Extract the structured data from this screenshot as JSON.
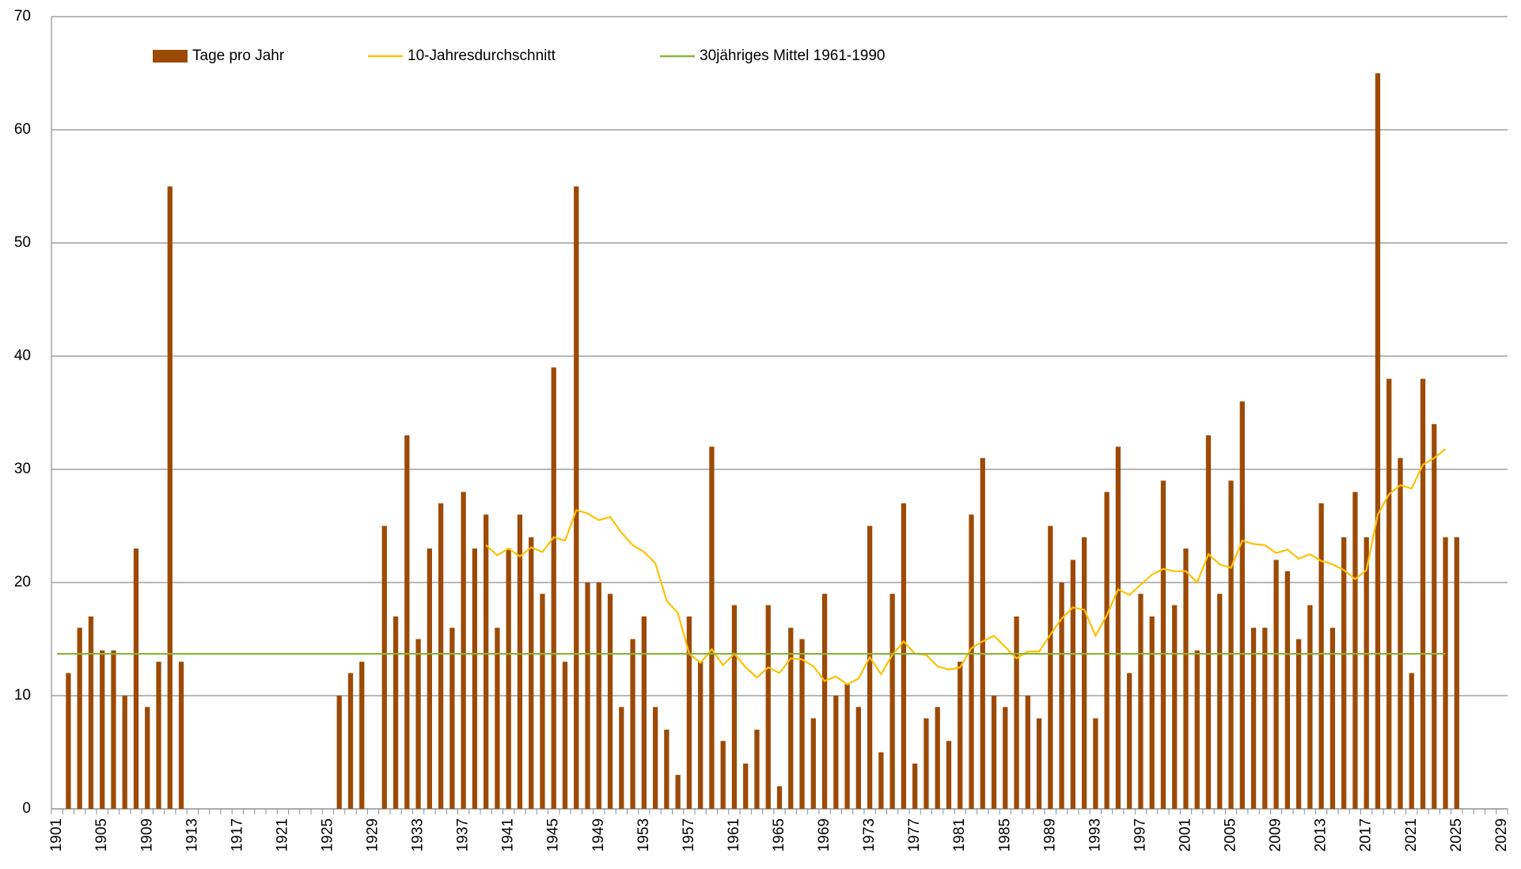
{
  "chart_data": {
    "type": "bar",
    "categories": [
      "1901",
      null,
      null,
      null,
      "1905",
      null,
      null,
      null,
      "1909",
      null,
      null,
      null,
      "1913",
      null,
      null,
      null,
      "1917",
      null,
      null,
      null,
      "1921",
      null,
      null,
      null,
      "1925",
      null,
      null,
      null,
      "1929",
      null,
      null,
      null,
      "1933",
      null,
      null,
      null,
      "1937",
      null,
      null,
      null,
      "1941",
      null,
      null,
      null,
      "1945",
      null,
      null,
      null,
      "1949",
      null,
      null,
      null,
      "1953",
      null,
      null,
      null,
      "1957",
      null,
      null,
      null,
      "1961",
      null,
      null,
      null,
      "1965",
      null,
      null,
      null,
      "1969",
      null,
      null,
      null,
      "1973",
      null,
      null,
      null,
      "1977",
      null,
      null,
      null,
      "1981",
      null,
      null,
      null,
      "1985",
      null,
      null,
      null,
      "1989",
      null,
      null,
      null,
      "1993",
      null,
      null,
      null,
      "1997",
      null,
      null,
      null,
      "2001",
      null,
      null,
      null,
      "2005",
      null,
      null,
      null,
      "2009",
      null,
      null,
      null,
      "2013",
      null,
      null,
      null,
      "2017",
      null,
      null,
      null,
      "2021",
      null,
      null,
      null,
      "2025",
      null,
      null,
      null,
      "2029"
    ],
    "series": [
      {
        "name": "Tage pro Jahr",
        "type": "bar",
        "color": "#9c4a06",
        "values": [
          null,
          12,
          16,
          17,
          14,
          14,
          10,
          23,
          9,
          13,
          55,
          13,
          null,
          null,
          null,
          null,
          null,
          null,
          null,
          null,
          null,
          null,
          null,
          null,
          null,
          10,
          12,
          13,
          null,
          25,
          17,
          33,
          15,
          23,
          27,
          16,
          28,
          23,
          26,
          16,
          23,
          26,
          24,
          19,
          39,
          13,
          55,
          20,
          20,
          19,
          9,
          15,
          17,
          9,
          7,
          3,
          17,
          13,
          32,
          6,
          18,
          4,
          7,
          18,
          2,
          16,
          15,
          8,
          19,
          10,
          11,
          9,
          25,
          5,
          19,
          27,
          4,
          8,
          9,
          6,
          13,
          26,
          31,
          10,
          9,
          17,
          10,
          8,
          25,
          20,
          22,
          24,
          8,
          28,
          32,
          12,
          19,
          17,
          29,
          18,
          23,
          14,
          33,
          19,
          29,
          36,
          16,
          16,
          22,
          21,
          15,
          18,
          27,
          16,
          24,
          28,
          24,
          65,
          38,
          31,
          12,
          38,
          34,
          24,
          24,
          null,
          null,
          null,
          null
        ]
      },
      {
        "name": "10-Jahresdurchschnitt",
        "type": "line",
        "color": "#ffc000",
        "values": [
          null,
          null,
          null,
          null,
          null,
          null,
          null,
          null,
          null,
          null,
          null,
          null,
          null,
          null,
          null,
          null,
          null,
          null,
          null,
          null,
          null,
          null,
          null,
          null,
          null,
          null,
          null,
          null,
          null,
          null,
          null,
          null,
          null,
          null,
          null,
          null,
          null,
          null,
          23.3,
          22.4,
          23.0,
          22.3,
          23.1,
          22.7,
          24.0,
          23.7,
          26.4,
          26.1,
          25.5,
          25.8,
          24.4,
          23.3,
          22.7,
          21.7,
          18.4,
          17.3,
          13.7,
          12.9,
          14.1,
          12.7,
          13.7,
          12.5,
          11.6,
          12.5,
          12.0,
          13.3,
          13.2,
          12.6,
          11.3,
          11.7,
          11.0,
          11.5,
          13.4,
          11.9,
          13.6,
          14.8,
          13.7,
          13.6,
          12.6,
          12.3,
          12.5,
          14.2,
          14.8,
          15.3,
          14.3,
          13.3,
          13.9,
          13.9,
          15.4,
          16.8,
          17.8,
          17.6,
          15.3,
          17.1,
          19.4,
          18.9,
          19.8,
          20.7,
          21.2,
          21.0,
          21.0,
          20.0,
          22.5,
          21.6,
          21.3,
          23.7,
          23.4,
          23.3,
          22.6,
          22.9,
          22.1,
          22.5,
          21.9,
          21.6,
          21.1,
          20.3,
          21.1,
          26.0,
          27.8,
          28.6,
          28.3,
          30.4,
          31.0,
          31.8,
          null,
          null,
          null,
          null,
          null
        ]
      },
      {
        "name": "30jähriges Mittel 1961-1990",
        "type": "line",
        "color": "#8db33a",
        "values": [
          13.7,
          13.7,
          13.7,
          13.7,
          13.7,
          13.7,
          13.7,
          13.7,
          13.7,
          13.7,
          13.7,
          13.7,
          13.7,
          13.7,
          13.7,
          13.7,
          13.7,
          13.7,
          13.7,
          13.7,
          13.7,
          13.7,
          13.7,
          13.7,
          13.7,
          13.7,
          13.7,
          13.7,
          13.7,
          13.7,
          13.7,
          13.7,
          13.7,
          13.7,
          13.7,
          13.7,
          13.7,
          13.7,
          13.7,
          13.7,
          13.7,
          13.7,
          13.7,
          13.7,
          13.7,
          13.7,
          13.7,
          13.7,
          13.7,
          13.7,
          13.7,
          13.7,
          13.7,
          13.7,
          13.7,
          13.7,
          13.7,
          13.7,
          13.7,
          13.7,
          13.7,
          13.7,
          13.7,
          13.7,
          13.7,
          13.7,
          13.7,
          13.7,
          13.7,
          13.7,
          13.7,
          13.7,
          13.7,
          13.7,
          13.7,
          13.7,
          13.7,
          13.7,
          13.7,
          13.7,
          13.7,
          13.7,
          13.7,
          13.7,
          13.7,
          13.7,
          13.7,
          13.7,
          13.7,
          13.7,
          13.7,
          13.7,
          13.7,
          13.7,
          13.7,
          13.7,
          13.7,
          13.7,
          13.7,
          13.7,
          13.7,
          13.7,
          13.7,
          13.7,
          13.7,
          13.7,
          13.7,
          13.7,
          13.7,
          13.7,
          13.7,
          13.7,
          13.7,
          13.7,
          13.7,
          13.7,
          13.7,
          13.7,
          13.7,
          13.7,
          13.7,
          13.7,
          13.7,
          13.7,
          null,
          null,
          null,
          null,
          null
        ]
      }
    ],
    "ylim": [
      0,
      70
    ],
    "yticks": [
      0,
      10,
      20,
      30,
      40,
      50,
      60,
      70
    ],
    "grid": true,
    "legend": "top"
  }
}
